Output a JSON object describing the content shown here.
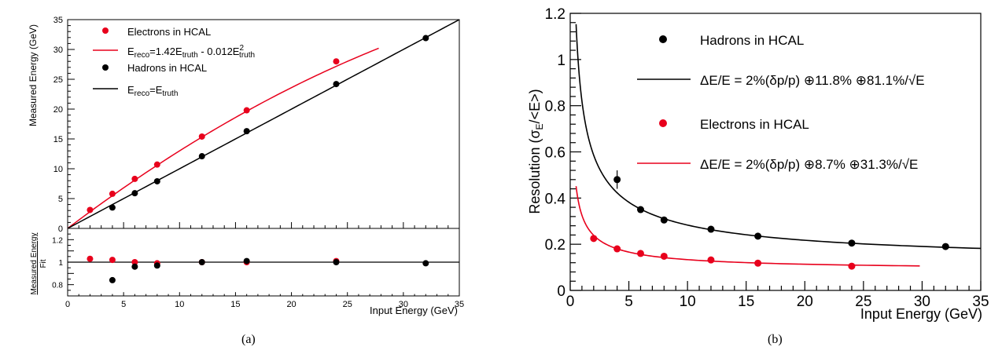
{
  "chart_data": [
    {
      "panel": "a",
      "caption": "(a)",
      "type": "scatter",
      "xlabel": "Input Energy (GeV)",
      "ylabel": "Measured Energy (GeV)",
      "xlim": [
        0,
        35
      ],
      "ylim": [
        0,
        35
      ],
      "xticks": [
        "0",
        "5",
        "10",
        "15",
        "20",
        "25",
        "30",
        "35"
      ],
      "yticks": [
        "0",
        "5",
        "10",
        "15",
        "20",
        "25",
        "30",
        "35"
      ],
      "legend_position": "top-left",
      "legend": {
        "electrons_marker": "Electrons in HCAL",
        "electrons_fit": {
          "base": "E",
          "sub1": "reco",
          "mid": "=1.42E",
          "sub2": "truth",
          "tail": " - 0.012E",
          "sup": "2",
          "sub3": "truth"
        },
        "hadrons_marker": "Hadrons in HCAL",
        "hadrons_fit": {
          "base": "E",
          "sub1": "reco",
          "mid": "=E",
          "sub2": "truth"
        }
      },
      "series": [
        {
          "key": "electrons",
          "color": "#e8001c",
          "x": [
            2,
            4,
            6,
            8,
            12,
            16,
            24
          ],
          "y": [
            3.1,
            5.8,
            8.3,
            10.7,
            15.4,
            19.8,
            28.0
          ]
        },
        {
          "key": "hadrons",
          "color": "#000000",
          "x": [
            4,
            6,
            8,
            12,
            16,
            24,
            32
          ],
          "y": [
            3.5,
            5.9,
            7.9,
            12.1,
            16.3,
            24.2,
            31.9
          ]
        }
      ],
      "fits": [
        {
          "key": "electrons_fit",
          "color": "#e8001c",
          "formula": "1.42x - 0.012x^2",
          "a": 1.42,
          "b": -0.012,
          "range": [
            0,
            27.8
          ]
        },
        {
          "key": "hadrons_fit",
          "color": "#000000",
          "formula": "x",
          "range": [
            0,
            35
          ]
        }
      ],
      "ratio_panel": {
        "ylabel_top": "Measured Energy",
        "ylabel_bottom": "Fit",
        "ylim": [
          0.7,
          1.3
        ],
        "yticks": [
          "0.8",
          "1",
          "1.2"
        ],
        "reference_line": 1,
        "series": [
          {
            "key": "electrons",
            "color": "#e8001c",
            "x": [
              2,
              4,
              6,
              8,
              12,
              16,
              24
            ],
            "y": [
              1.03,
              1.02,
              1.0,
              0.99,
              1.0,
              1.0,
              1.01
            ]
          },
          {
            "key": "hadrons",
            "color": "#000000",
            "x": [
              4,
              6,
              8,
              12,
              16,
              24,
              32
            ],
            "y": [
              0.84,
              0.96,
              0.97,
              1.0,
              1.01,
              1.0,
              0.99
            ]
          }
        ]
      }
    },
    {
      "panel": "b",
      "caption": "(b)",
      "type": "scatter",
      "xlabel": "Input Energy (GeV)",
      "ylabel": {
        "pre": "Resolution (σ",
        "sub": "E",
        "post": "/<E>)"
      },
      "xlim": [
        0,
        35
      ],
      "ylim": [
        0,
        1.2
      ],
      "xticks": [
        "0",
        "5",
        "10",
        "15",
        "20",
        "25",
        "30",
        "35"
      ],
      "yticks": [
        "0",
        "0.2",
        "0.4",
        "0.6",
        "0.8",
        "1",
        "1.2"
      ],
      "legend_position": "top-right",
      "legend": {
        "hadrons_marker": "Hadrons in HCAL",
        "hadrons_fit": "ΔE/E = 2%(δp/p) ⊕11.8% ⊕81.1%/√E",
        "electrons_marker": "Electrons in HCAL",
        "electrons_fit": "ΔE/E = 2%(δp/p) ⊕8.7% ⊕31.3%/√E"
      },
      "series": [
        {
          "key": "hadrons",
          "color": "#000000",
          "x": [
            4,
            6,
            8,
            12,
            16,
            24,
            32
          ],
          "y": [
            0.48,
            0.35,
            0.305,
            0.265,
            0.235,
            0.205,
            0.19
          ],
          "yerr": [
            0.04,
            0.01,
            0.008,
            0.006,
            0.005,
            0.004,
            0.004
          ]
        },
        {
          "key": "electrons",
          "color": "#e8001c",
          "x": [
            2,
            4,
            6,
            8,
            12,
            16,
            24
          ],
          "y": [
            0.225,
            0.18,
            0.16,
            0.148,
            0.132,
            0.118,
            0.105
          ]
        }
      ],
      "fits": [
        {
          "key": "hadrons_fit",
          "color": "#000000",
          "a": 0.811,
          "c": 0.118,
          "d": 0.02,
          "range": [
            0.5,
            35
          ]
        },
        {
          "key": "electrons_fit",
          "color": "#e8001c",
          "a": 0.313,
          "c": 0.087,
          "d": 0.02,
          "range": [
            0.5,
            29.8
          ]
        }
      ]
    }
  ]
}
